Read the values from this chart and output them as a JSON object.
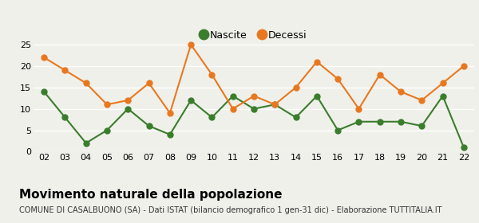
{
  "years": [
    "02",
    "03",
    "04",
    "05",
    "06",
    "07",
    "08",
    "09",
    "10",
    "11",
    "12",
    "13",
    "14",
    "15",
    "16",
    "17",
    "18",
    "19",
    "20",
    "21",
    "22"
  ],
  "nascite": [
    14,
    8,
    2,
    5,
    10,
    6,
    4,
    12,
    8,
    13,
    10,
    11,
    8,
    13,
    5,
    7,
    7,
    7,
    6,
    13,
    1
  ],
  "decessi": [
    22,
    19,
    16,
    11,
    12,
    16,
    9,
    25,
    18,
    10,
    13,
    11,
    15,
    21,
    17,
    10,
    18,
    14,
    12,
    16,
    20
  ],
  "nascite_color": "#3a7d2c",
  "decessi_color": "#e87820",
  "background_color": "#f0f0eb",
  "grid_color": "#ffffff",
  "ylim": [
    0,
    25
  ],
  "yticks": [
    0,
    5,
    10,
    15,
    20,
    25
  ],
  "title": "Movimento naturale della popolazione",
  "subtitle": "COMUNE DI CASALBUONO (SA) - Dati ISTAT (bilancio demografico 1 gen-31 dic) - Elaborazione TUTTITALIA.IT",
  "legend_nascite": "Nascite",
  "legend_decessi": "Decessi",
  "marker_size": 5,
  "line_width": 1.5,
  "title_fontsize": 11,
  "subtitle_fontsize": 7,
  "tick_fontsize": 8,
  "legend_fontsize": 9
}
